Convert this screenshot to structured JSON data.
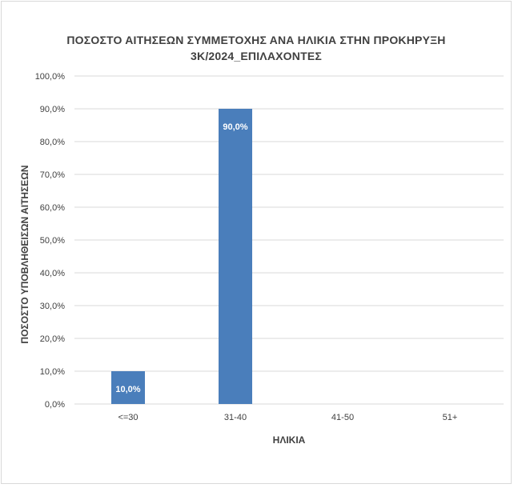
{
  "chart_data": {
    "type": "bar",
    "title_lines": [
      "ΠΟΣΟΣΤΟ ΑΙΤΗΣΕΩΝ ΣΥΜΜΕΤΟΧΗΣ ΑΝΑ ΗΛΙΚΙΑ ΣΤΗΝ ΠΡΟΚΗΡΥΞΗ",
      "3Κ/2024_ΕΠΙΛΑΧΟΝΤΕΣ"
    ],
    "xlabel": "ΗΛΙΚΙΑ",
    "ylabel": "ΠΟΣΟΣΤΟ ΥΠΟΒΛΗΘΕΙΣΩΝ ΑΙΤΗΣΕΩΝ",
    "categories": [
      "<=30",
      "31-40",
      "41-50",
      "51+"
    ],
    "values": [
      10.0,
      90.0,
      0.0,
      0.0
    ],
    "data_labels": [
      "10,0%",
      "90,0%",
      "",
      ""
    ],
    "ylim": [
      0,
      100
    ],
    "yticks": [
      0,
      10,
      20,
      30,
      40,
      50,
      60,
      70,
      80,
      90,
      100
    ],
    "ytick_labels": [
      "0,0%",
      "10,0%",
      "20,0%",
      "30,0%",
      "40,0%",
      "50,0%",
      "60,0%",
      "70,0%",
      "80,0%",
      "90,0%",
      "100,0%"
    ],
    "grid": true,
    "legend": "none",
    "bar_color": "#4a7ebb",
    "grid_color": "#d9d9d9",
    "text_color": "#404040",
    "data_label_color": "#ffffff"
  }
}
